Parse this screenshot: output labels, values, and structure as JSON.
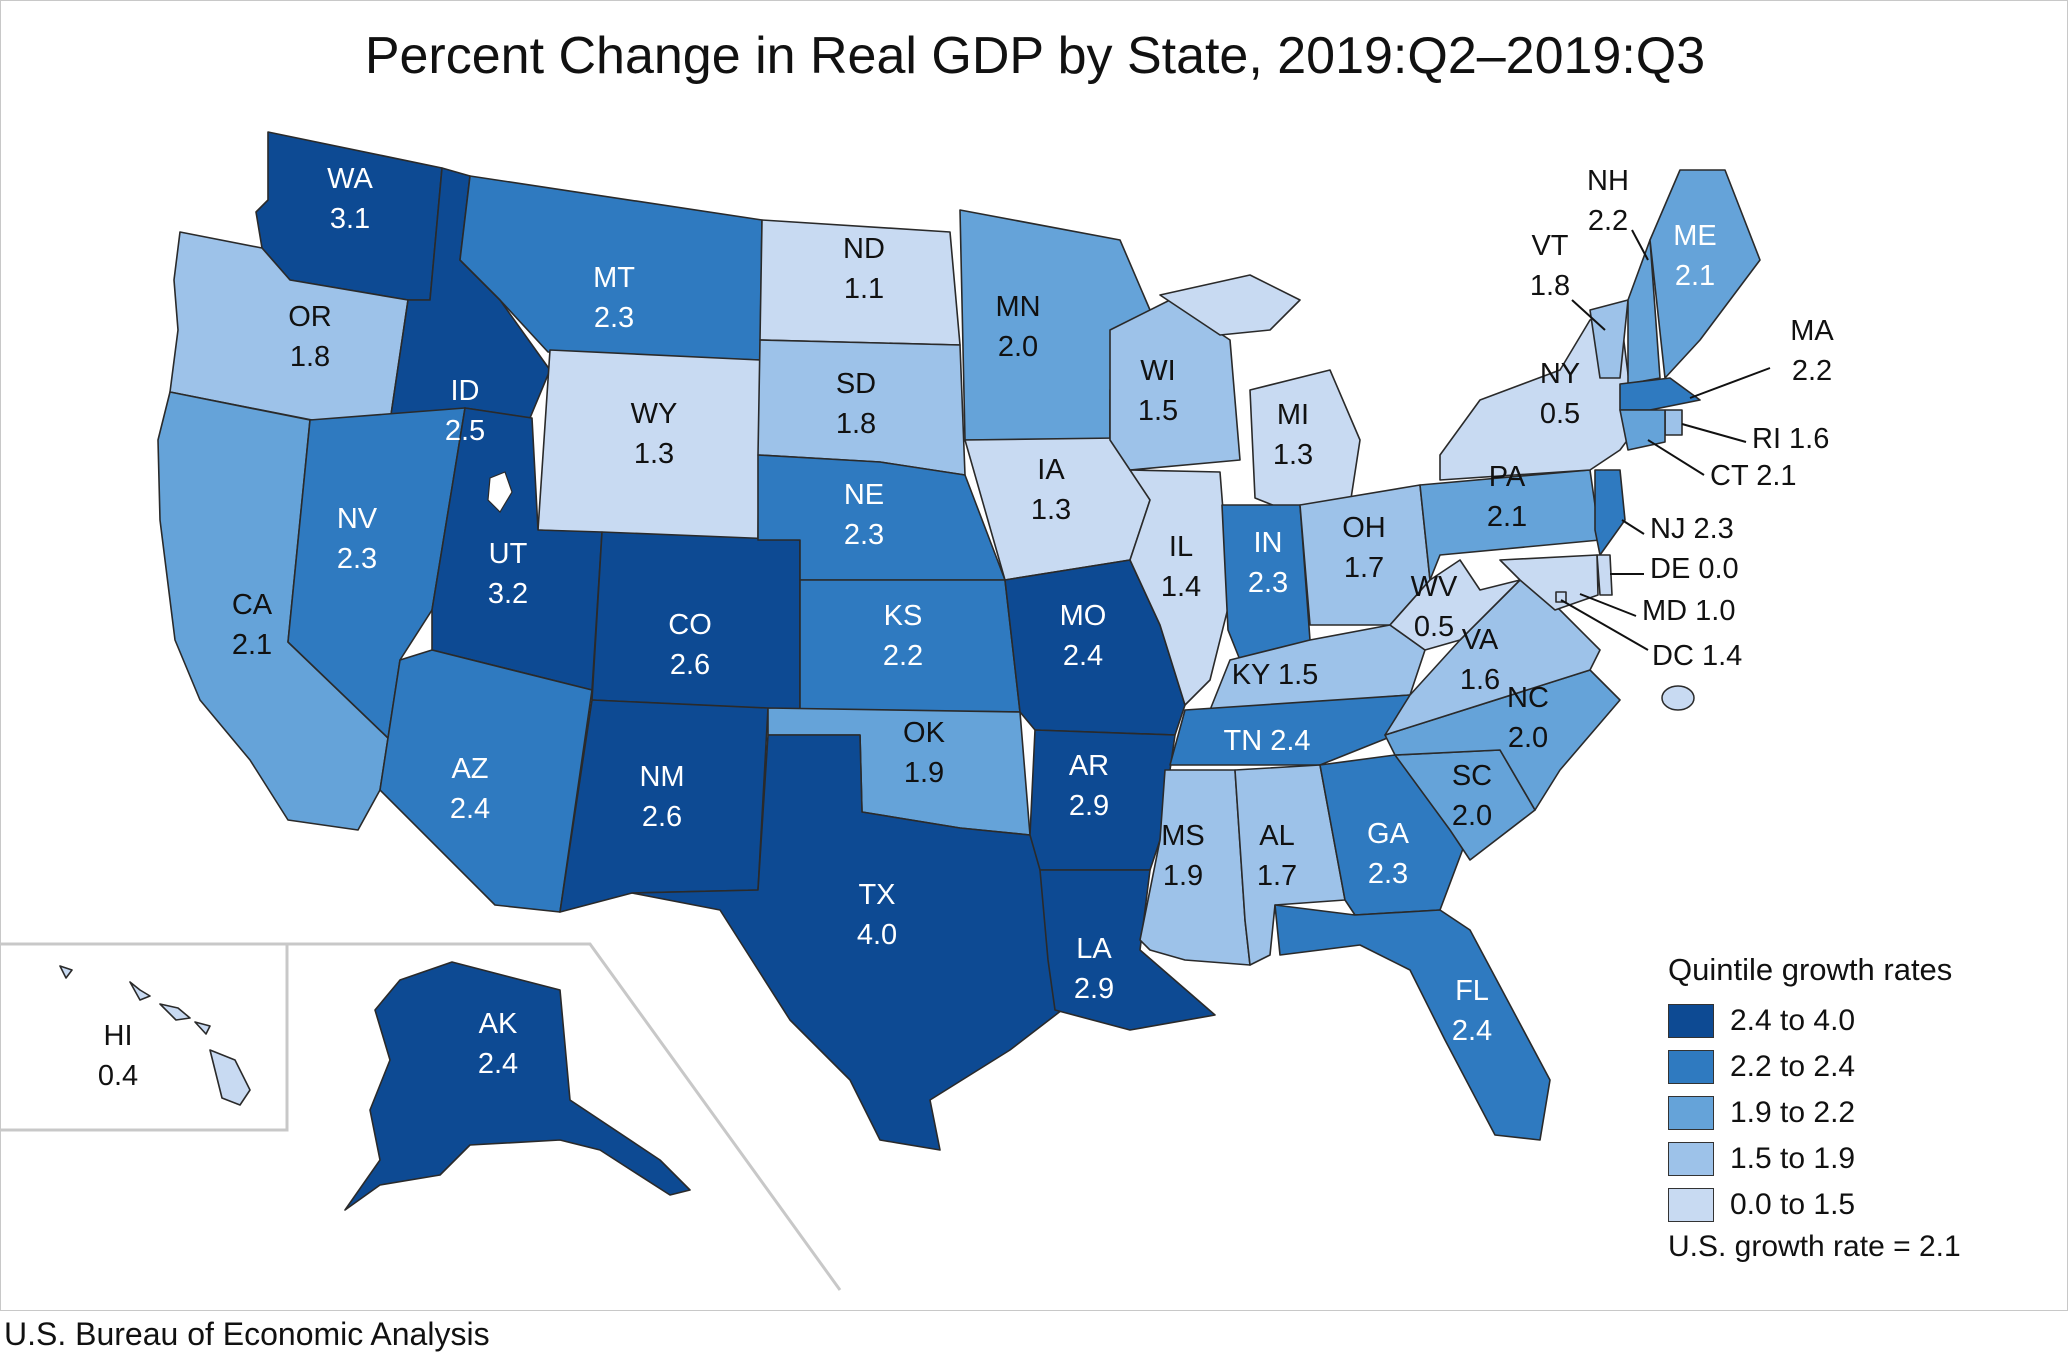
{
  "title": "Percent Change in Real GDP by State, 2019:Q2–2019:Q3",
  "source": "U.S. Bureau of Economic Analysis",
  "legend": {
    "title": "Quintile growth rates",
    "items": [
      {
        "label": "2.4 to 4.0",
        "color": "#0d4a93"
      },
      {
        "label": "2.2 to 2.4",
        "color": "#2f7ac0"
      },
      {
        "label": "1.9 to 2.2",
        "color": "#65a3d9"
      },
      {
        "label": "1.5 to 1.9",
        "color": "#9dc2e9"
      },
      {
        "label": "0.0 to 1.5",
        "color": "#c8daf2"
      }
    ],
    "us_rate": "U.S. growth rate = 2.1"
  },
  "chart_data": {
    "type": "choropleth",
    "title": "Percent Change in Real GDP by State, 2019:Q2–2019:Q3",
    "unit": "percent",
    "states": [
      {
        "abbr": "WA",
        "value": "3.1",
        "bin": 0
      },
      {
        "abbr": "OR",
        "value": "1.8",
        "bin": 3
      },
      {
        "abbr": "CA",
        "value": "2.1",
        "bin": 2
      },
      {
        "abbr": "ID",
        "value": "2.5",
        "bin": 0
      },
      {
        "abbr": "NV",
        "value": "2.3",
        "bin": 1
      },
      {
        "abbr": "MT",
        "value": "2.3",
        "bin": 1
      },
      {
        "abbr": "WY",
        "value": "1.3",
        "bin": 4
      },
      {
        "abbr": "UT",
        "value": "3.2",
        "bin": 0
      },
      {
        "abbr": "AZ",
        "value": "2.4",
        "bin": 1
      },
      {
        "abbr": "CO",
        "value": "2.6",
        "bin": 0
      },
      {
        "abbr": "NM",
        "value": "2.6",
        "bin": 0
      },
      {
        "abbr": "ND",
        "value": "1.1",
        "bin": 4
      },
      {
        "abbr": "SD",
        "value": "1.8",
        "bin": 3
      },
      {
        "abbr": "NE",
        "value": "2.3",
        "bin": 1
      },
      {
        "abbr": "KS",
        "value": "2.2",
        "bin": 1
      },
      {
        "abbr": "OK",
        "value": "1.9",
        "bin": 2
      },
      {
        "abbr": "TX",
        "value": "4.0",
        "bin": 0
      },
      {
        "abbr": "MN",
        "value": "2.0",
        "bin": 2
      },
      {
        "abbr": "IA",
        "value": "1.3",
        "bin": 4
      },
      {
        "abbr": "MO",
        "value": "2.4",
        "bin": 0
      },
      {
        "abbr": "AR",
        "value": "2.9",
        "bin": 0
      },
      {
        "abbr": "LA",
        "value": "2.9",
        "bin": 0
      },
      {
        "abbr": "WI",
        "value": "1.5",
        "bin": 3
      },
      {
        "abbr": "IL",
        "value": "1.4",
        "bin": 4
      },
      {
        "abbr": "MI",
        "value": "1.3",
        "bin": 4
      },
      {
        "abbr": "IN",
        "value": "2.3",
        "bin": 1
      },
      {
        "abbr": "OH",
        "value": "1.7",
        "bin": 3
      },
      {
        "abbr": "KY",
        "value": "1.5",
        "bin": 3
      },
      {
        "abbr": "TN",
        "value": "2.4",
        "bin": 1
      },
      {
        "abbr": "MS",
        "value": "1.9",
        "bin": 3
      },
      {
        "abbr": "AL",
        "value": "1.7",
        "bin": 3
      },
      {
        "abbr": "GA",
        "value": "2.3",
        "bin": 1
      },
      {
        "abbr": "FL",
        "value": "2.4",
        "bin": 1
      },
      {
        "abbr": "SC",
        "value": "2.0",
        "bin": 2
      },
      {
        "abbr": "NC",
        "value": "2.0",
        "bin": 2
      },
      {
        "abbr": "VA",
        "value": "1.6",
        "bin": 3
      },
      {
        "abbr": "WV",
        "value": "0.5",
        "bin": 4
      },
      {
        "abbr": "PA",
        "value": "2.1",
        "bin": 2
      },
      {
        "abbr": "NY",
        "value": "0.5",
        "bin": 4
      },
      {
        "abbr": "VT",
        "value": "1.8",
        "bin": 3
      },
      {
        "abbr": "NH",
        "value": "2.2",
        "bin": 2
      },
      {
        "abbr": "ME",
        "value": "2.1",
        "bin": 2
      },
      {
        "abbr": "MA",
        "value": "2.2",
        "bin": 1
      },
      {
        "abbr": "RI",
        "value": "1.6",
        "bin": 3
      },
      {
        "abbr": "CT",
        "value": "2.1",
        "bin": 2
      },
      {
        "abbr": "NJ",
        "value": "2.3",
        "bin": 1
      },
      {
        "abbr": "DE",
        "value": "0.0",
        "bin": 4
      },
      {
        "abbr": "MD",
        "value": "1.0",
        "bin": 4
      },
      {
        "abbr": "DC",
        "value": "1.4",
        "bin": 4
      },
      {
        "abbr": "AK",
        "value": "2.4",
        "bin": 0
      },
      {
        "abbr": "HI",
        "value": "0.4",
        "bin": 4
      }
    ]
  }
}
